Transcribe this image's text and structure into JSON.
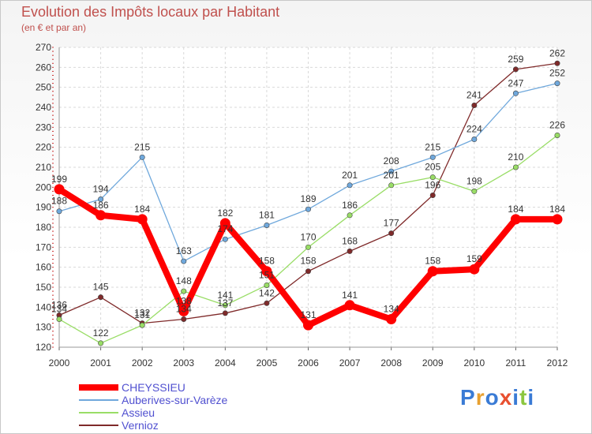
{
  "chart_data": {
    "type": "line",
    "title": "Evolution des Impôts locaux par Habitant",
    "subtitle": "(en € et par an)",
    "xlabel": "",
    "ylabel": "",
    "x": [
      "2000",
      "2001",
      "2002",
      "2003",
      "2004",
      "2005",
      "2006",
      "2007",
      "2008",
      "2009",
      "2010",
      "2011",
      "2012"
    ],
    "ylim": [
      120,
      270
    ],
    "yticks": [
      120,
      130,
      140,
      150,
      160,
      170,
      180,
      190,
      200,
      210,
      220,
      230,
      240,
      250,
      260,
      270
    ],
    "grid": true,
    "legend_position": "bottom-left",
    "series": [
      {
        "name": "CHEYSSIEU",
        "color": "#ff0000",
        "values": [
          199,
          186,
          184,
          138,
          182,
          158,
          131,
          141,
          134,
          158,
          159,
          184,
          184
        ]
      },
      {
        "name": "Auberives-sur-Varèze",
        "color": "#6fa8dc",
        "values": [
          188,
          194,
          215,
          163,
          174,
          181,
          189,
          201,
          208,
          215,
          224,
          247,
          252
        ]
      },
      {
        "name": "Assieu",
        "color": "#99dd66",
        "values": [
          134,
          122,
          131,
          148,
          141,
          151,
          170,
          186,
          201,
          205,
          198,
          210,
          226
        ]
      },
      {
        "name": "Vernioz",
        "color": "#7f2a2a",
        "values": [
          136,
          145,
          132,
          134,
          137,
          142,
          158,
          168,
          177,
          196,
          241,
          259,
          262
        ]
      }
    ]
  },
  "logo": {
    "text": "Proxiti",
    "letters": [
      {
        "ch": "P",
        "color": "#3a7bd5"
      },
      {
        "ch": "r",
        "color": "#e8a030"
      },
      {
        "ch": "o",
        "color": "#3a7bd5"
      },
      {
        "ch": "x",
        "color": "#e85030"
      },
      {
        "ch": "i",
        "color": "#3a7bd5"
      },
      {
        "ch": "t",
        "color": "#8cc63f"
      },
      {
        "ch": "i",
        "color": "#3a7bd5"
      }
    ]
  }
}
